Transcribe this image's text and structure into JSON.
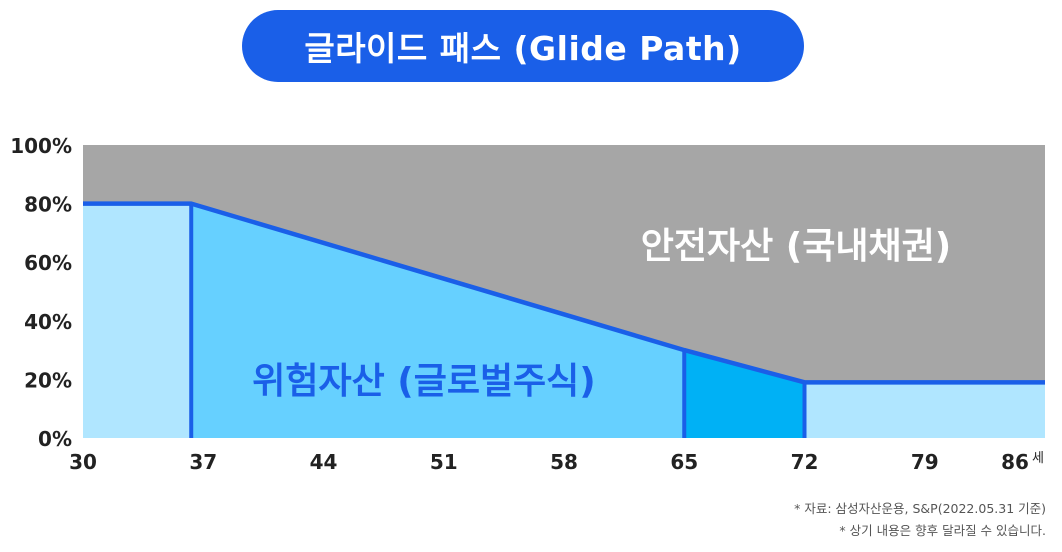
{
  "title": "글라이드 패스 (Glide Path)",
  "chart_data": {
    "type": "area",
    "x_ticks": [
      30,
      37,
      44,
      51,
      58,
      65,
      72,
      79,
      86
    ],
    "x_unit": "세",
    "y_ticks": [
      "0%",
      "20%",
      "40%",
      "60%",
      "80%",
      "100%"
    ],
    "ylim": [
      0,
      100
    ],
    "xlim": [
      30,
      86
    ],
    "risky_line": [
      [
        30,
        80
      ],
      [
        36.3,
        80
      ],
      [
        65,
        30
      ],
      [
        72,
        19
      ],
      [
        86,
        19
      ]
    ],
    "bands": [
      {
        "x_start": 30,
        "x_end": 36.3,
        "color": "#b0e6ff"
      },
      {
        "x_start": 36.3,
        "x_end": 65,
        "color": "#66d0ff"
      },
      {
        "x_start": 65,
        "x_end": 72,
        "color": "#00b1f5"
      },
      {
        "x_start": 72,
        "x_end": 86,
        "color": "#b0e6ff"
      }
    ],
    "series": [
      {
        "name": "위험자산 (글로벌주식)",
        "color": "#1a5fe8"
      },
      {
        "name": "안전자산 (국내채권)",
        "color": "#a6a6a6"
      }
    ]
  },
  "colors": {
    "title_bg": "#1a5fe8",
    "line": "#1a5fe8",
    "safe_area": "#a6a6a6",
    "risky_label": "#1a5fe8",
    "safe_label": "#ffffff"
  },
  "footnotes": [
    "* 자료: 삼성자산운용, S&P(2022.05.31 기준)",
    "* 상기 내용은 향후 달라질 수 있습니다."
  ]
}
